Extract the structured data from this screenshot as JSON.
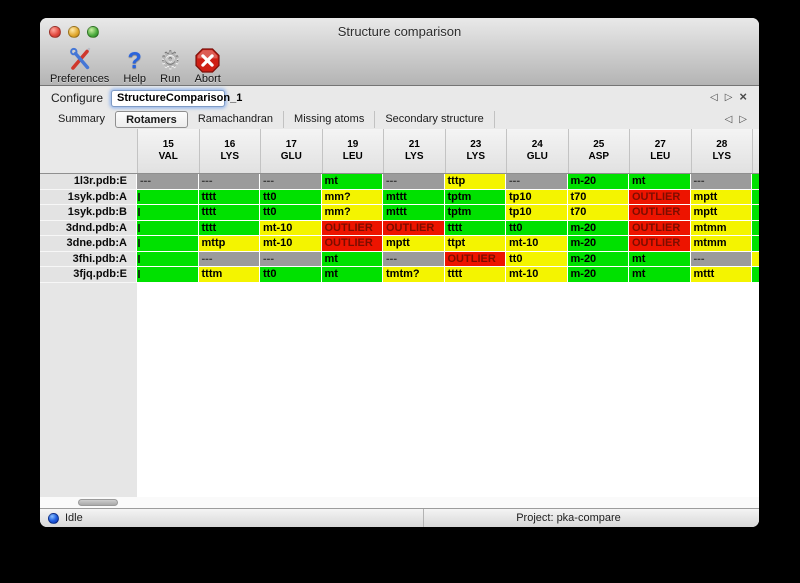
{
  "window": {
    "title": "Structure comparison"
  },
  "toolbar": {
    "items": [
      {
        "id": "preferences",
        "label": "Preferences",
        "icon": "tools-icon"
      },
      {
        "id": "help",
        "label": "Help",
        "icon": "question-icon"
      },
      {
        "id": "run",
        "label": "Run",
        "icon": "gear-icon"
      },
      {
        "id": "abort",
        "label": "Abort",
        "icon": "abort-icon"
      }
    ]
  },
  "configure": {
    "label": "Configure",
    "value": "StructureComparison_1",
    "nav": {
      "prev": "◁",
      "next": "▷",
      "close": "×"
    }
  },
  "tabs": {
    "items": [
      {
        "label": "Summary",
        "selected": false
      },
      {
        "label": "Rotamers",
        "selected": true
      },
      {
        "label": "Ramachandran",
        "selected": false
      },
      {
        "label": "Missing atoms",
        "selected": false
      },
      {
        "label": "Secondary structure",
        "selected": false
      }
    ],
    "nav": {
      "prev": "◁",
      "next": "▷"
    }
  },
  "colors": {
    "green": "#00e100",
    "yellow": "#f4f400",
    "gray": "#9b9b9b",
    "red": "#ed1400"
  },
  "table": {
    "columns": [
      {
        "num": "15",
        "res": "VAL"
      },
      {
        "num": "16",
        "res": "LYS"
      },
      {
        "num": "17",
        "res": "GLU"
      },
      {
        "num": "19",
        "res": "LEU"
      },
      {
        "num": "21",
        "res": "LYS"
      },
      {
        "num": "23",
        "res": "LYS"
      },
      {
        "num": "24",
        "res": "GLU"
      },
      {
        "num": "25",
        "res": "ASP"
      },
      {
        "num": "27",
        "res": "LEU"
      },
      {
        "num": "28",
        "res": "LYS"
      }
    ],
    "rows": [
      {
        "label": "1l3r.pdb:E",
        "partial": "green",
        "cells": [
          [
            "---",
            "gray"
          ],
          [
            "---",
            "gray"
          ],
          [
            "---",
            "gray"
          ],
          [
            "mt",
            "green"
          ],
          [
            "---",
            "gray"
          ],
          [
            "tttp",
            "yellow"
          ],
          [
            "---",
            "gray"
          ],
          [
            "m-20",
            "green"
          ],
          [
            "mt",
            "green"
          ],
          [
            "---",
            "gray"
          ]
        ]
      },
      {
        "label": "1syk.pdb:A",
        "partial": "green",
        "cells": [
          [
            "",
            "green",
            "clip"
          ],
          [
            "tttt",
            "green"
          ],
          [
            "tt0",
            "green"
          ],
          [
            "mm?",
            "yellow"
          ],
          [
            "mttt",
            "green"
          ],
          [
            "tptm",
            "green"
          ],
          [
            "tp10",
            "yellow"
          ],
          [
            "t70",
            "yellow"
          ],
          [
            "OUTLIER",
            "red"
          ],
          [
            "mptt",
            "yellow"
          ]
        ]
      },
      {
        "label": "1syk.pdb:B",
        "partial": "green",
        "cells": [
          [
            "",
            "green",
            "clip"
          ],
          [
            "tttt",
            "green"
          ],
          [
            "tt0",
            "green"
          ],
          [
            "mm?",
            "yellow"
          ],
          [
            "mttt",
            "green"
          ],
          [
            "tptm",
            "green"
          ],
          [
            "tp10",
            "yellow"
          ],
          [
            "t70",
            "yellow"
          ],
          [
            "OUTLIER",
            "red"
          ],
          [
            "mptt",
            "yellow"
          ]
        ]
      },
      {
        "label": "3dnd.pdb:A",
        "partial": "green",
        "cells": [
          [
            "",
            "green",
            "clip"
          ],
          [
            "tttt",
            "green"
          ],
          [
            "mt-10",
            "yellow"
          ],
          [
            "OUTLIER",
            "red"
          ],
          [
            "OUTLIER",
            "red"
          ],
          [
            "tttt",
            "green"
          ],
          [
            "tt0",
            "green"
          ],
          [
            "m-20",
            "green"
          ],
          [
            "OUTLIER",
            "red"
          ],
          [
            "mtmm",
            "yellow"
          ]
        ]
      },
      {
        "label": "3dne.pdb:A",
        "partial": "green",
        "cells": [
          [
            "",
            "green",
            "clip"
          ],
          [
            "mttp",
            "yellow"
          ],
          [
            "mt-10",
            "yellow"
          ],
          [
            "OUTLIER",
            "red"
          ],
          [
            "mptt",
            "yellow"
          ],
          [
            "ttpt",
            "yellow"
          ],
          [
            "mt-10",
            "yellow"
          ],
          [
            "m-20",
            "green"
          ],
          [
            "OUTLIER",
            "red"
          ],
          [
            "mtmm",
            "yellow"
          ]
        ]
      },
      {
        "label": "3fhi.pdb:A",
        "partial": "yellow",
        "cells": [
          [
            "",
            "green",
            "clip"
          ],
          [
            "---",
            "gray"
          ],
          [
            "---",
            "gray"
          ],
          [
            "mt",
            "green"
          ],
          [
            "---",
            "gray"
          ],
          [
            "OUTLIER",
            "red"
          ],
          [
            "tt0",
            "yellow"
          ],
          [
            "m-20",
            "green"
          ],
          [
            "mt",
            "green"
          ],
          [
            "---",
            "gray"
          ]
        ]
      },
      {
        "label": "3fjq.pdb:E",
        "partial": "green",
        "cells": [
          [
            "",
            "green",
            "clip"
          ],
          [
            "tttm",
            "yellow"
          ],
          [
            "tt0",
            "green"
          ],
          [
            "mt",
            "green"
          ],
          [
            "tmtm?",
            "yellow"
          ],
          [
            "tttt",
            "yellow"
          ],
          [
            "mt-10",
            "yellow"
          ],
          [
            "m-20",
            "green"
          ],
          [
            "mt",
            "green"
          ],
          [
            "mttt",
            "yellow"
          ]
        ]
      }
    ]
  },
  "status": {
    "left": "Idle",
    "right": "Project: pka-compare"
  }
}
